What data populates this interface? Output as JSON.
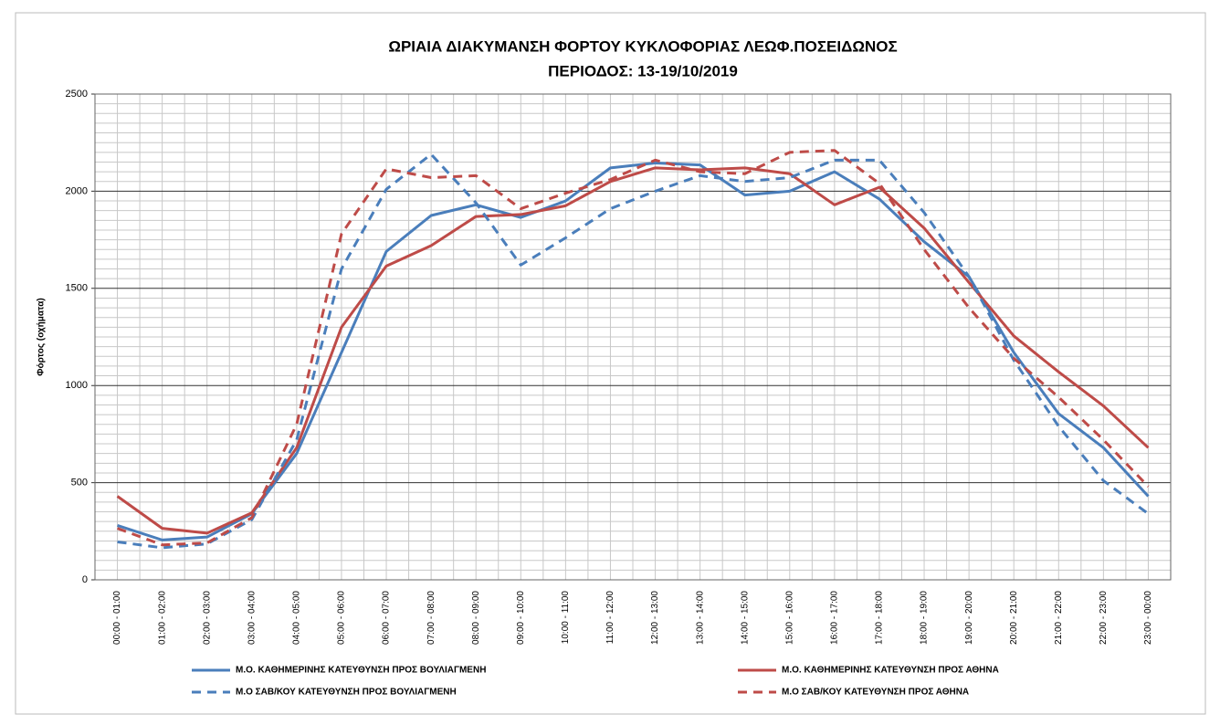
{
  "chart_data": {
    "type": "line",
    "title": "ΩΡΙΑΙΑ ΔΙΑΚΥΜΑΝΣΗ ΦΟΡΤΟΥ ΚΥΚΛΟΦΟΡΙΑΣ ΛΕΩΦ.ΠΟΣΕΙΔΩΝΟΣ",
    "subtitle": "ΠΕΡΙΟΔΟΣ: 13-19/10/2019",
    "y_label": "Φόρτος (οχήματα)",
    "categories": [
      "00:00 - 01:00",
      "01:00 - 02:00",
      "02:00 - 03:00",
      "03:00 - 04:00",
      "04:00 - 05:00",
      "05:00 - 06:00",
      "06:00 - 07:00",
      "07:00 - 08:00",
      "08:00 - 09:00",
      "09:00 - 10:00",
      "10:00 - 11:00",
      "11:00 - 12:00",
      "12:00 - 13:00",
      "13:00 - 14:00",
      "14:00 - 15:00",
      "15:00 - 16:00",
      "16:00 - 17:00",
      "17:00 - 18:00",
      "18:00 - 19:00",
      "19:00 - 20:00",
      "20:00 - 21:00",
      "21:00 - 22:00",
      "22:00 - 23:00",
      "23:00 - 00:00"
    ],
    "series": [
      {
        "name": "Μ.Ο. ΚΑΘΗΜΕΡΙΝΗΣ ΚΑΤΕΥΘΥΝΣΗ ΠΡΟΣ ΒΟΥΛΙΑΓΜΕΝΗ",
        "color": "#4a7ebb",
        "dashed": false,
        "values": [
          280,
          205,
          220,
          340,
          650,
          1170,
          1690,
          1875,
          1930,
          1865,
          1950,
          2120,
          2145,
          2135,
          1980,
          2000,
          2100,
          1960,
          1740,
          1560,
          1170,
          855,
          680,
          430
        ]
      },
      {
        "name": "Μ.Ο. ΚΑΘΗΜΕΡΙΝΗΣ ΚΑΤΕΥΘΥΝΣΗ ΠΡΟΣ ΑΘΗΝΑ",
        "color": "#be4b48",
        "dashed": false,
        "values": [
          430,
          265,
          240,
          345,
          680,
          1300,
          1615,
          1720,
          1870,
          1880,
          1925,
          2050,
          2120,
          2110,
          2120,
          2090,
          1930,
          2020,
          1810,
          1530,
          1255,
          1070,
          895,
          680
        ]
      },
      {
        "name": "Μ.Ο ΣΑΒ/ΚΟΥ ΚΑΤΕΥΘΥΝΣΗ ΠΡΟΣ ΒΟΥΛΙΑΓΜΕΝΗ",
        "color": "#4a7ebb",
        "dashed": true,
        "values": [
          195,
          165,
          185,
          310,
          720,
          1600,
          2010,
          2190,
          1940,
          1620,
          1760,
          1910,
          2000,
          2080,
          2050,
          2070,
          2160,
          2160,
          1890,
          1560,
          1130,
          790,
          510,
          340
        ]
      },
      {
        "name": "Μ.Ο ΣΑΒ/ΚΟΥ ΚΑΤΕΥΘΥΝΣΗ ΠΡΟΣ ΑΘΗΝΑ",
        "color": "#be4b48",
        "dashed": true,
        "values": [
          265,
          180,
          190,
          320,
          800,
          1780,
          2115,
          2070,
          2080,
          1910,
          1990,
          2060,
          2160,
          2100,
          2090,
          2200,
          2210,
          2040,
          1700,
          1400,
          1140,
          940,
          720,
          480
        ]
      }
    ],
    "ylim": [
      0,
      2500
    ],
    "yticks": [
      0,
      500,
      1000,
      1500,
      2000,
      2500
    ],
    "grid": true,
    "minor_grid": true,
    "legend": "bottom"
  }
}
